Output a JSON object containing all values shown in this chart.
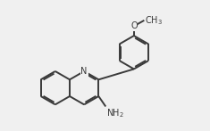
{
  "bg_color": "#f0f0f0",
  "bond_color": "#3a3a3a",
  "bond_width": 1.4,
  "text_color": "#3a3a3a",
  "fig_width": 2.35,
  "fig_height": 1.47,
  "dpi": 100,
  "font_size": 7.0
}
